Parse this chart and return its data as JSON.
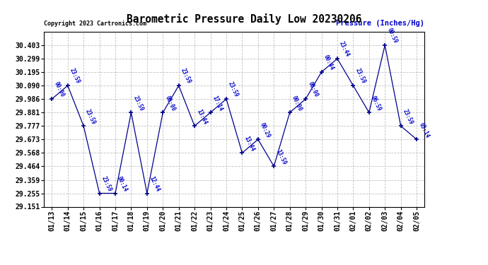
{
  "title": "Barometric Pressure Daily Low 20230206",
  "copyright": "Copyright 2023 Cartronics.com",
  "ylabel": "Pressure (Inches/Hg)",
  "background_color": "#ffffff",
  "line_color": "#00008b",
  "text_color": "#0000cc",
  "grid_color": "#bbbbbb",
  "dates": [
    "01/13",
    "01/14",
    "01/15",
    "01/16",
    "01/17",
    "01/18",
    "01/19",
    "01/20",
    "01/21",
    "01/22",
    "01/23",
    "01/24",
    "01/25",
    "01/26",
    "01/27",
    "01/28",
    "01/29",
    "01/30",
    "01/31",
    "02/01",
    "02/02",
    "02/03",
    "02/04",
    "02/05"
  ],
  "values": [
    29.986,
    30.09,
    29.777,
    29.255,
    29.255,
    29.881,
    29.255,
    29.881,
    30.09,
    29.777,
    29.881,
    29.986,
    29.568,
    29.673,
    29.464,
    29.881,
    29.986,
    30.195,
    30.299,
    30.09,
    29.881,
    30.403,
    29.777,
    29.673
  ],
  "point_labels": [
    "00:00",
    "23:59",
    "23:59",
    "23:59",
    "00:14",
    "23:59",
    "12:44",
    "00:00",
    "23:59",
    "13:44",
    "17:14",
    "23:59",
    "13:44",
    "00:29",
    "13:59",
    "00:00",
    "00:00",
    "00:44",
    "23:44",
    "23:59",
    "06:59",
    "00:59",
    "23:59",
    "03:14"
  ],
  "ylim_min": 29.151,
  "ylim_max": 30.507,
  "yticks": [
    29.151,
    29.255,
    29.359,
    29.464,
    29.568,
    29.673,
    29.777,
    29.881,
    29.986,
    30.09,
    30.195,
    30.299,
    30.403
  ]
}
